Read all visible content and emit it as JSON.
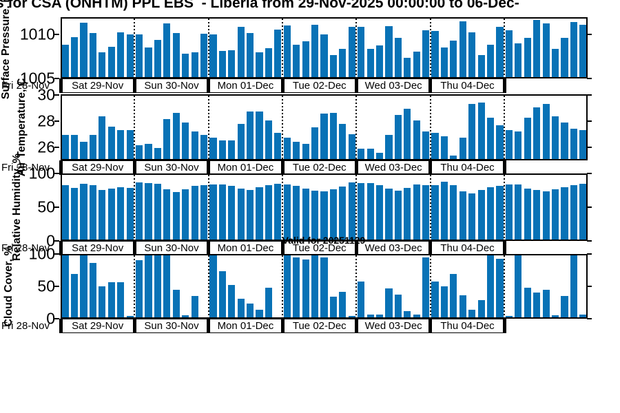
{
  "title": "s for CSA (ONHTM) PPL EBS  - Liberia from 29-Nov-2025 00:00:00 to 06-Dec-",
  "valid_label": "Valid for 20251129",
  "colors": {
    "bar": "#0872B6",
    "axis": "#000000"
  },
  "x_axis": {
    "first_day_label": "Fri 28-Nov",
    "day_labels": [
      "Sat 29-Nov",
      "Sun 30-Nov",
      "Mon 01-Dec",
      "Tue 02-Dec",
      "Wed 03-Dec",
      "Thu 04-Dec"
    ],
    "bars_per_day": 8,
    "start": "29-Nov-2025 00:00",
    "step_hours": 3,
    "points": 57
  },
  "chart_data": [
    {
      "type": "bar",
      "ylabel": "Surface Pressure, mb",
      "yticks": [
        1005,
        1010
      ],
      "ylim": [
        1005,
        1011.9
      ],
      "grid": "dotted-day-separators",
      "values": [
        1008.8,
        1009.7,
        1011.4,
        1010.2,
        1007.9,
        1008.6,
        1010.3,
        1010.0,
        1010.0,
        1008.5,
        1009.4,
        1011.3,
        1010.2,
        1007.8,
        1007.9,
        1010.1,
        1010.0,
        1008.1,
        1008.2,
        1010.9,
        1010.2,
        1007.9,
        1008.4,
        1010.6,
        1011.1,
        1008.8,
        1009.2,
        1011.2,
        1010.0,
        1007.6,
        1008.3,
        1010.9,
        1010.9,
        1008.3,
        1008.7,
        1011.0,
        1009.6,
        1007.3,
        1008.0,
        1010.5,
        1010.4,
        1008.5,
        1009.3,
        1011.6,
        1010.3,
        1007.6,
        1008.8,
        1010.9,
        1010.5,
        1009.0,
        1009.6,
        1011.7,
        1011.3,
        1008.3,
        1009.6,
        1011.5,
        1011.2
      ]
    },
    {
      "type": "bar",
      "ylabel": "Air Temperature, C",
      "yticks": [
        26,
        28,
        30
      ],
      "ylim": [
        25,
        30.05
      ],
      "grid": "dotted-day-separators",
      "values": [
        26.9,
        26.9,
        26.4,
        26.9,
        28.4,
        27.6,
        27.3,
        27.3,
        26.1,
        26.2,
        25.9,
        28.2,
        28.7,
        27.9,
        27.2,
        26.9,
        26.7,
        26.5,
        26.5,
        27.8,
        28.8,
        28.8,
        28.1,
        27.1,
        26.7,
        26.4,
        26.2,
        27.5,
        28.6,
        28.7,
        27.8,
        27.0,
        25.8,
        25.8,
        25.5,
        26.9,
        28.5,
        29.0,
        28.1,
        27.2,
        27.1,
        26.8,
        25.3,
        26.7,
        29.4,
        29.5,
        28.3,
        27.7,
        27.3,
        27.2,
        28.3,
        29.1,
        29.4,
        28.4,
        27.9,
        27.4,
        27.3
      ]
    },
    {
      "type": "bar",
      "ylabel": "Relative Humidity, %",
      "yticks": [
        0,
        50,
        100
      ],
      "ylim": [
        0,
        100
      ],
      "grid": "dotted-day-separators",
      "values": [
        84,
        80,
        86,
        84,
        77,
        79,
        81,
        80,
        88,
        87,
        86,
        78,
        73,
        78,
        83,
        84,
        85,
        85,
        83,
        79,
        77,
        81,
        84,
        86,
        85,
        83,
        79,
        76,
        75,
        78,
        82,
        88,
        87,
        87,
        84,
        79,
        76,
        80,
        85,
        84,
        84,
        89,
        84,
        74,
        71,
        77,
        81,
        83,
        85,
        85,
        79,
        77,
        75,
        78,
        81,
        84,
        86
      ]
    },
    {
      "type": "bar",
      "ylabel": "Cloud Cover, %",
      "yticks": [
        0,
        50,
        100
      ],
      "ylim": [
        0,
        100
      ],
      "grid": "dotted-day-separators",
      "values": [
        100,
        70,
        100,
        88,
        50,
        57,
        57,
        2,
        92,
        100,
        100,
        100,
        44,
        3,
        34,
        0,
        100,
        75,
        52,
        30,
        22,
        12,
        48,
        0,
        100,
        97,
        93,
        100,
        97,
        33,
        41,
        2,
        58,
        5,
        5,
        47,
        37,
        10,
        5,
        97,
        58,
        50,
        70,
        36,
        12,
        28,
        100,
        95,
        2,
        100,
        48,
        40,
        45,
        3,
        35,
        100,
        5
      ]
    }
  ]
}
